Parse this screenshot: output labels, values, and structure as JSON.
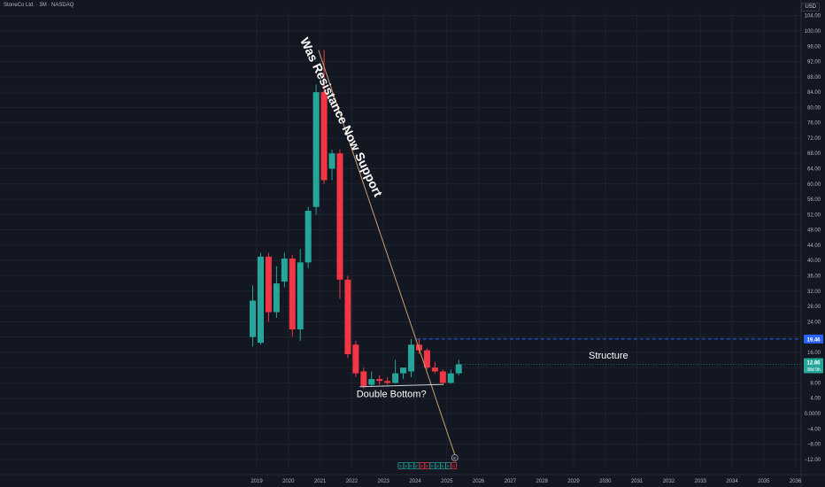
{
  "header": {
    "title": "StoneCo Ltd. · 3M · NASDAQ",
    "currency": "USD"
  },
  "colors": {
    "background": "#131722",
    "up": "#26a69a",
    "down": "#f23645",
    "trendline": "#c8a06a",
    "structure": "#2962ff",
    "grid": "#1e222d"
  },
  "chart_data": {
    "type": "candlestick",
    "title": "StoneCo Ltd. · 3M · NASDAQ",
    "xlabel": "",
    "ylabel": "",
    "x_ticks": [
      "2019",
      "2020",
      "2021",
      "2022",
      "2023",
      "2024",
      "2025",
      "2026",
      "2027",
      "2028",
      "2029",
      "2030",
      "2031",
      "2032",
      "2033",
      "2034",
      "2035",
      "2036"
    ],
    "y_ticks": [
      "104.00",
      "100.00",
      "96.00",
      "92.00",
      "88.00",
      "84.00",
      "80.00",
      "76.00",
      "72.00",
      "68.00",
      "64.00",
      "60.00",
      "56.00",
      "52.00",
      "48.00",
      "44.00",
      "40.00",
      "36.00",
      "32.00",
      "28.00",
      "24.00",
      "20.00",
      "16.00",
      "12.00",
      "8.00",
      "4.00",
      "0.0000",
      "−4.00",
      "−8.00",
      "−12.00"
    ],
    "ylim": [
      -14,
      106
    ],
    "grid": true,
    "candles": [
      {
        "t": 2018.875,
        "o": 20.0,
        "h": 33.5,
        "l": 17.5,
        "c": 29.5
      },
      {
        "t": 2019.125,
        "o": 18.5,
        "h": 42.0,
        "l": 18.0,
        "c": 41.0
      },
      {
        "t": 2019.375,
        "o": 41.0,
        "h": 42.0,
        "l": 24.0,
        "c": 26.5
      },
      {
        "t": 2019.625,
        "o": 26.5,
        "h": 38.5,
        "l": 25.0,
        "c": 34.0
      },
      {
        "t": 2019.875,
        "o": 34.5,
        "h": 42.0,
        "l": 33.0,
        "c": 40.5
      },
      {
        "t": 2020.125,
        "o": 40.5,
        "h": 41.5,
        "l": 20.0,
        "c": 22.0
      },
      {
        "t": 2020.375,
        "o": 22.0,
        "h": 43.0,
        "l": 19.0,
        "c": 39.5
      },
      {
        "t": 2020.625,
        "o": 39.5,
        "h": 54.0,
        "l": 38.0,
        "c": 53.0
      },
      {
        "t": 2020.875,
        "o": 54.0,
        "h": 86.0,
        "l": 52.0,
        "c": 84.0
      },
      {
        "t": 2021.125,
        "o": 84.0,
        "h": 95.0,
        "l": 60.0,
        "c": 61.0
      },
      {
        "t": 2021.375,
        "o": 64.0,
        "h": 69.0,
        "l": 61.0,
        "c": 68.0
      },
      {
        "t": 2021.625,
        "o": 68.0,
        "h": 69.0,
        "l": 30.0,
        "c": 35.0
      },
      {
        "t": 2021.875,
        "o": 35.0,
        "h": 36.0,
        "l": 14.5,
        "c": 15.5
      },
      {
        "t": 2022.125,
        "o": 18.0,
        "h": 19.0,
        "l": 9.5,
        "c": 10.5
      },
      {
        "t": 2022.375,
        "o": 11.0,
        "h": 12.0,
        "l": 6.5,
        "c": 7.2
      },
      {
        "t": 2022.625,
        "o": 7.5,
        "h": 11.0,
        "l": 7.0,
        "c": 9.0
      },
      {
        "t": 2022.875,
        "o": 9.0,
        "h": 10.0,
        "l": 7.5,
        "c": 8.5
      },
      {
        "t": 2023.125,
        "o": 8.5,
        "h": 9.5,
        "l": 7.5,
        "c": 8.0
      },
      {
        "t": 2023.375,
        "o": 8.0,
        "h": 14.0,
        "l": 7.8,
        "c": 10.5
      },
      {
        "t": 2023.625,
        "o": 10.5,
        "h": 11.0,
        "l": 9.0,
        "c": 12.0
      },
      {
        "t": 2023.875,
        "o": 11.0,
        "h": 19.5,
        "l": 9.5,
        "c": 18.0
      },
      {
        "t": 2024.125,
        "o": 18.0,
        "h": 19.46,
        "l": 15.5,
        "c": 16.5
      },
      {
        "t": 2024.375,
        "o": 16.5,
        "h": 17.0,
        "l": 11.5,
        "c": 12.0
      },
      {
        "t": 2024.625,
        "o": 12.0,
        "h": 13.5,
        "l": 10.5,
        "c": 11.0
      },
      {
        "t": 2024.875,
        "o": 11.0,
        "h": 11.5,
        "l": 7.5,
        "c": 8.0
      },
      {
        "t": 2025.125,
        "o": 8.0,
        "h": 11.5,
        "l": 7.8,
        "c": 10.5
      },
      {
        "t": 2025.375,
        "o": 10.5,
        "h": 14.0,
        "l": 10.0,
        "c": 12.86
      }
    ],
    "trendline": {
      "from": {
        "t": 2020.95,
        "p": 95.0
      },
      "to": {
        "t": 2025.3,
        "p": -12.0
      }
    },
    "double_bottom_line": {
      "from": {
        "t": 2022.25,
        "p": 7.0
      },
      "to": {
        "t": 2024.9,
        "p": 7.6
      }
    },
    "structure_line": {
      "from": {
        "t": 2024.05,
        "p": 19.46
      },
      "price": 19.46,
      "price_label": "19.46"
    },
    "last_price": {
      "price": 12.86,
      "label": "12.86",
      "countdown": "38d 9h"
    },
    "annotations": [
      {
        "text": "Was Resistance Now Support",
        "t": 2021.55,
        "p": 77.0,
        "rotate": 64.5,
        "size": 14
      },
      {
        "text": "Double Bottom?",
        "t": 2023.25,
        "p": 4.3,
        "rotate": 0,
        "size": 11
      },
      {
        "text": "Structure",
        "t": 2030.1,
        "p": 14.3,
        "rotate": 0,
        "size": 11
      }
    ],
    "events": [
      {
        "t": 2023.55,
        "text": "E",
        "color": "#26a69a"
      },
      {
        "t": 2023.72,
        "text": "E",
        "color": "#26a69a"
      },
      {
        "t": 2023.88,
        "text": "E",
        "color": "#26a69a"
      },
      {
        "t": 2024.05,
        "text": "E",
        "color": "#26a69a"
      },
      {
        "t": 2024.22,
        "text": "E",
        "color": "#f23645"
      },
      {
        "t": 2024.38,
        "text": "E",
        "color": "#f23645"
      },
      {
        "t": 2024.55,
        "text": "E",
        "color": "#26a69a"
      },
      {
        "t": 2024.72,
        "text": "E",
        "color": "#26a69a"
      },
      {
        "t": 2024.88,
        "text": "E",
        "color": "#26a69a"
      },
      {
        "t": 2025.05,
        "text": "E",
        "color": "#26a69a"
      },
      {
        "t": 2025.22,
        "text": "E",
        "color": "#f23645"
      }
    ],
    "event_badge": {
      "t": 2025.25,
      "text": "E"
    }
  }
}
